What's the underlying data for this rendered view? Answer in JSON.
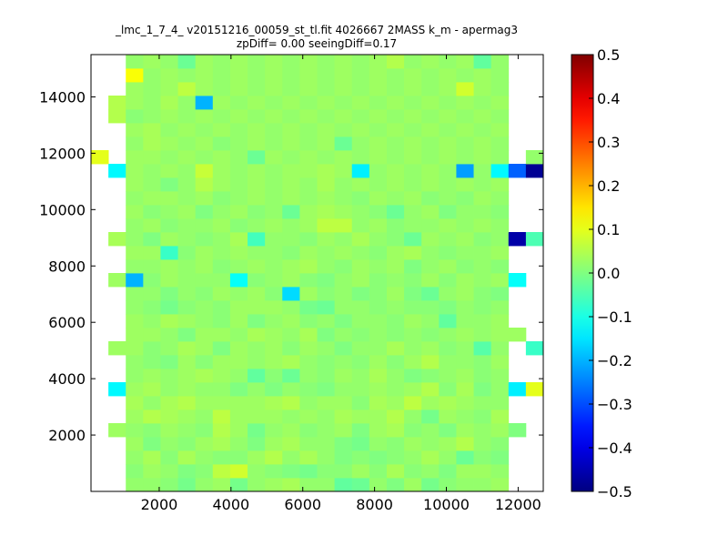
{
  "chart_data": {
    "type": "heatmap",
    "title_line1": "_lmc_1_7_4_ v20151216_00059_st_tl.fit 4026667 2MASS k_m - apermag3",
    "title_line2": "zpDiff= 0.00 seeingDiff=0.17",
    "xlabel": "",
    "ylabel": "",
    "xlim": [
      100,
      12700
    ],
    "ylim": [
      0,
      15500
    ],
    "x_ticks": [
      2000,
      4000,
      6000,
      8000,
      10000,
      12000
    ],
    "y_ticks": [
      2000,
      4000,
      6000,
      8000,
      10000,
      12000,
      14000
    ],
    "x_tick_labels": [
      "2000",
      "4000",
      "6000",
      "8000",
      "10000",
      "12000"
    ],
    "y_tick_labels": [
      "2000",
      "4000",
      "6000",
      "8000",
      "10000",
      "12000",
      "14000"
    ],
    "colormap": "jet",
    "colorbar": {
      "min": -0.5,
      "max": 0.5,
      "ticks": [
        0.5,
        0.4,
        0.3,
        0.2,
        0.1,
        0.0,
        -0.1,
        -0.2,
        -0.3,
        -0.4,
        -0.5
      ],
      "tick_labels": [
        "0.5",
        "0.4",
        "0.3",
        "0.2",
        "0.1",
        "0.0",
        "−0.1",
        "−0.2",
        "−0.3",
        "−0.4",
        "−0.5"
      ]
    },
    "grid": {
      "nx": 26,
      "ny": 32,
      "x_edges": [
        100,
        12700
      ],
      "y_edges": [
        0,
        15500
      ],
      "values": [
        [
          null,
          null,
          0.02,
          0.02,
          0.01,
          -0.01,
          0.02,
          0.03,
          -0.01,
          0.02,
          0.03,
          0.04,
          0.02,
          0.02,
          -0.03,
          -0.02,
          0.02,
          0.0,
          0.03,
          -0.01,
          0.01,
          0.02,
          0.02,
          0.03,
          null,
          null
        ],
        [
          null,
          null,
          0.01,
          0.03,
          0.02,
          0.0,
          0.01,
          0.06,
          0.08,
          0.02,
          0.01,
          0.0,
          -0.01,
          0.01,
          0.01,
          0.03,
          0.01,
          0.04,
          0.01,
          0.02,
          0.0,
          0.03,
          0.03,
          0.02,
          null,
          null
        ],
        [
          null,
          null,
          0.02,
          0.04,
          0.01,
          0.04,
          0.02,
          0.01,
          0.01,
          0.03,
          0.05,
          0.02,
          0.04,
          0.02,
          0.0,
          0.01,
          0.0,
          0.01,
          0.02,
          0.04,
          0.02,
          -0.02,
          0.01,
          0.0,
          null,
          null
        ],
        [
          null,
          null,
          0.03,
          0.0,
          0.02,
          0.01,
          0.03,
          0.04,
          0.02,
          0.0,
          0.03,
          0.04,
          0.02,
          0.02,
          0.0,
          -0.01,
          0.02,
          0.01,
          0.03,
          0.02,
          0.03,
          0.05,
          0.02,
          0.01,
          null,
          null
        ],
        [
          null,
          0.03,
          0.02,
          0.01,
          0.03,
          0.02,
          0.01,
          0.05,
          0.03,
          -0.01,
          0.02,
          0.03,
          0.01,
          0.02,
          0.03,
          0.0,
          0.03,
          0.04,
          0.01,
          0.02,
          0.0,
          0.03,
          0.02,
          0.03,
          0.0,
          null
        ],
        [
          null,
          null,
          0.03,
          0.05,
          0.04,
          0.03,
          0.02,
          0.06,
          0.03,
          0.03,
          0.03,
          0.02,
          0.03,
          0.02,
          0.04,
          0.03,
          0.03,
          0.05,
          0.02,
          -0.01,
          0.03,
          0.02,
          0.01,
          0.04,
          null,
          null
        ],
        [
          null,
          null,
          0.04,
          0.02,
          0.04,
          0.05,
          0.03,
          0.03,
          0.03,
          0.03,
          0.04,
          0.05,
          0.02,
          0.03,
          0.03,
          0.01,
          0.04,
          0.03,
          0.06,
          0.03,
          0.04,
          0.03,
          0.02,
          0.02,
          null,
          null
        ],
        [
          null,
          -0.13,
          0.03,
          0.04,
          0.02,
          0.03,
          0.02,
          0.02,
          0.0,
          0.02,
          0.0,
          0.02,
          0.01,
          0.0,
          0.02,
          0.02,
          0.03,
          0.02,
          0.03,
          0.05,
          0.01,
          0.04,
          0.0,
          0.02,
          -0.14,
          0.1
        ],
        [
          null,
          null,
          0.02,
          0.03,
          0.02,
          0.03,
          0.04,
          0.03,
          0.02,
          -0.03,
          0.01,
          -0.02,
          0.02,
          0.01,
          0.03,
          0.02,
          0.04,
          0.02,
          0.0,
          0.01,
          0.02,
          0.03,
          0.01,
          0.02,
          null,
          null
        ],
        [
          null,
          null,
          0.02,
          0.01,
          0.0,
          0.03,
          0.01,
          0.03,
          0.03,
          0.02,
          0.03,
          0.04,
          0.02,
          0.01,
          0.02,
          0.01,
          0.03,
          0.01,
          0.03,
          0.05,
          0.02,
          0.02,
          0.01,
          0.03,
          null,
          null
        ],
        [
          null,
          0.03,
          0.03,
          0.01,
          0.02,
          0.04,
          0.03,
          0.0,
          0.03,
          0.02,
          0.03,
          0.01,
          0.03,
          0.02,
          0.0,
          0.02,
          0.02,
          0.04,
          0.02,
          0.03,
          0.01,
          0.02,
          -0.04,
          0.02,
          null,
          -0.07
        ],
        [
          null,
          null,
          0.03,
          0.03,
          0.02,
          0.0,
          0.03,
          0.03,
          0.02,
          0.04,
          0.03,
          0.02,
          0.04,
          0.0,
          0.02,
          0.01,
          0.02,
          0.01,
          0.02,
          0.01,
          0.02,
          0.03,
          0.02,
          0.03,
          0.03,
          null
        ],
        [
          null,
          null,
          0.03,
          0.02,
          0.04,
          0.03,
          0.02,
          0.01,
          0.03,
          0.0,
          0.02,
          0.03,
          0.01,
          0.02,
          0.0,
          0.02,
          0.02,
          0.01,
          0.03,
          0.02,
          -0.03,
          0.02,
          0.02,
          0.03,
          null,
          null
        ],
        [
          null,
          null,
          0.02,
          0.01,
          -0.01,
          0.01,
          0.02,
          0.01,
          0.03,
          0.03,
          0.03,
          0.02,
          -0.01,
          -0.02,
          0.02,
          0.02,
          0.01,
          0.02,
          0.01,
          0.01,
          0.0,
          0.02,
          0.01,
          0.02,
          null,
          null
        ],
        [
          null,
          null,
          0.02,
          0.02,
          0.0,
          0.02,
          0.01,
          0.03,
          0.02,
          0.03,
          0.01,
          -0.16,
          0.03,
          0.01,
          0.02,
          0.0,
          0.01,
          0.03,
          0.0,
          -0.02,
          0.02,
          0.03,
          0.01,
          0.0,
          null,
          null
        ],
        [
          null,
          0.03,
          -0.2,
          0.01,
          0.03,
          0.02,
          0.02,
          0.02,
          -0.12,
          0.01,
          0.02,
          0.03,
          0.01,
          0.0,
          0.02,
          0.03,
          0.01,
          0.02,
          0.01,
          0.03,
          0.01,
          0.03,
          0.02,
          0.03,
          -0.12,
          null
        ],
        [
          null,
          null,
          0.02,
          0.02,
          0.03,
          0.02,
          0.03,
          0.01,
          0.02,
          0.03,
          0.02,
          0.03,
          0.04,
          0.02,
          0.01,
          0.03,
          0.02,
          0.03,
          0.0,
          0.02,
          0.03,
          0.01,
          0.02,
          0.01,
          null,
          null
        ],
        [
          null,
          null,
          0.03,
          0.03,
          -0.07,
          0.01,
          0.03,
          0.02,
          0.03,
          0.02,
          0.02,
          0.01,
          0.03,
          0.02,
          0.03,
          0.02,
          0.01,
          0.03,
          0.04,
          0.02,
          0.01,
          0.02,
          0.02,
          0.03,
          null,
          null
        ],
        [
          null,
          0.04,
          0.02,
          0.0,
          0.03,
          0.02,
          0.01,
          0.02,
          0.04,
          -0.06,
          0.02,
          0.02,
          0.01,
          0.03,
          0.02,
          0.04,
          0.02,
          0.01,
          -0.02,
          0.03,
          0.02,
          0.03,
          0.01,
          0.02,
          -0.46,
          -0.05
        ],
        [
          null,
          null,
          0.02,
          0.03,
          0.01,
          0.02,
          0.02,
          0.03,
          0.01,
          0.02,
          0.03,
          0.02,
          0.03,
          0.06,
          0.06,
          0.02,
          0.03,
          0.01,
          0.02,
          0.02,
          0.03,
          0.02,
          0.03,
          0.02,
          null,
          null
        ],
        [
          null,
          null,
          0.03,
          0.01,
          0.02,
          0.03,
          0.0,
          0.02,
          0.03,
          0.01,
          0.02,
          -0.02,
          0.03,
          0.04,
          0.03,
          0.02,
          0.01,
          -0.02,
          0.02,
          0.03,
          0.0,
          0.02,
          0.02,
          0.01,
          null,
          null
        ],
        [
          null,
          null,
          0.02,
          0.03,
          0.03,
          0.02,
          0.03,
          0.01,
          0.02,
          0.03,
          0.02,
          0.03,
          0.02,
          0.03,
          0.02,
          0.01,
          0.03,
          0.02,
          0.03,
          0.01,
          0.02,
          0.01,
          0.03,
          0.02,
          null,
          null
        ],
        [
          null,
          null,
          0.03,
          0.02,
          0.0,
          0.02,
          0.05,
          0.03,
          0.02,
          0.03,
          0.02,
          0.03,
          0.02,
          0.04,
          0.02,
          0.03,
          0.02,
          0.03,
          0.02,
          0.03,
          0.02,
          0.03,
          0.02,
          0.03,
          null,
          null
        ],
        [
          null,
          -0.13,
          0.03,
          0.02,
          0.03,
          0.02,
          0.07,
          0.03,
          0.02,
          0.03,
          0.02,
          0.03,
          0.03,
          0.04,
          0.03,
          -0.14,
          0.02,
          0.03,
          0.02,
          0.03,
          0.02,
          -0.22,
          0.02,
          -0.13,
          -0.28,
          -0.48
        ],
        [
          0.1,
          null,
          0.03,
          0.03,
          0.02,
          0.03,
          0.02,
          0.03,
          0.02,
          -0.02,
          0.03,
          0.02,
          0.03,
          0.02,
          0.03,
          0.02,
          0.03,
          0.02,
          0.03,
          0.02,
          0.03,
          0.02,
          0.03,
          0.02,
          null,
          0.02
        ],
        [
          null,
          null,
          0.02,
          0.04,
          0.03,
          0.02,
          0.03,
          0.01,
          0.02,
          0.03,
          0.02,
          0.03,
          0.02,
          0.03,
          -0.02,
          0.02,
          0.03,
          0.02,
          0.03,
          0.02,
          0.03,
          0.02,
          0.03,
          0.02,
          null,
          null
        ],
        [
          null,
          null,
          0.03,
          0.04,
          0.02,
          0.03,
          0.02,
          0.03,
          0.02,
          0.03,
          0.02,
          0.03,
          0.02,
          0.03,
          0.02,
          0.03,
          0.02,
          0.03,
          0.02,
          0.03,
          0.02,
          0.03,
          0.02,
          0.03,
          null,
          null
        ],
        [
          null,
          0.05,
          0.01,
          0.02,
          0.03,
          0.02,
          0.03,
          0.02,
          0.03,
          0.02,
          0.03,
          0.02,
          0.03,
          0.02,
          0.03,
          0.02,
          0.03,
          0.02,
          0.03,
          0.02,
          0.03,
          0.02,
          0.03,
          0.02,
          null,
          null
        ],
        [
          null,
          0.05,
          0.03,
          0.02,
          0.04,
          0.02,
          -0.2,
          0.03,
          0.02,
          0.03,
          0.02,
          0.03,
          0.02,
          0.03,
          0.02,
          0.03,
          0.02,
          0.03,
          0.02,
          0.03,
          0.02,
          0.03,
          0.02,
          0.03,
          null,
          null
        ],
        [
          null,
          null,
          0.03,
          0.02,
          0.03,
          0.06,
          0.03,
          0.02,
          0.03,
          0.02,
          0.03,
          0.02,
          0.03,
          0.02,
          0.03,
          0.02,
          0.03,
          0.02,
          0.03,
          0.02,
          0.03,
          0.08,
          0.03,
          0.02,
          null,
          null
        ],
        [
          null,
          null,
          0.12,
          0.02,
          0.03,
          0.02,
          0.03,
          0.02,
          0.03,
          0.02,
          0.03,
          0.02,
          0.03,
          0.02,
          0.03,
          0.02,
          0.03,
          0.02,
          0.03,
          0.02,
          0.03,
          0.02,
          0.03,
          0.02,
          null,
          null
        ],
        [
          null,
          null,
          0.02,
          0.03,
          0.02,
          -0.02,
          0.03,
          0.02,
          0.03,
          0.02,
          0.03,
          0.02,
          0.03,
          0.02,
          0.03,
          0.02,
          0.03,
          0.05,
          0.02,
          0.03,
          0.02,
          0.03,
          -0.03,
          0.02,
          null,
          null
        ]
      ]
    }
  }
}
